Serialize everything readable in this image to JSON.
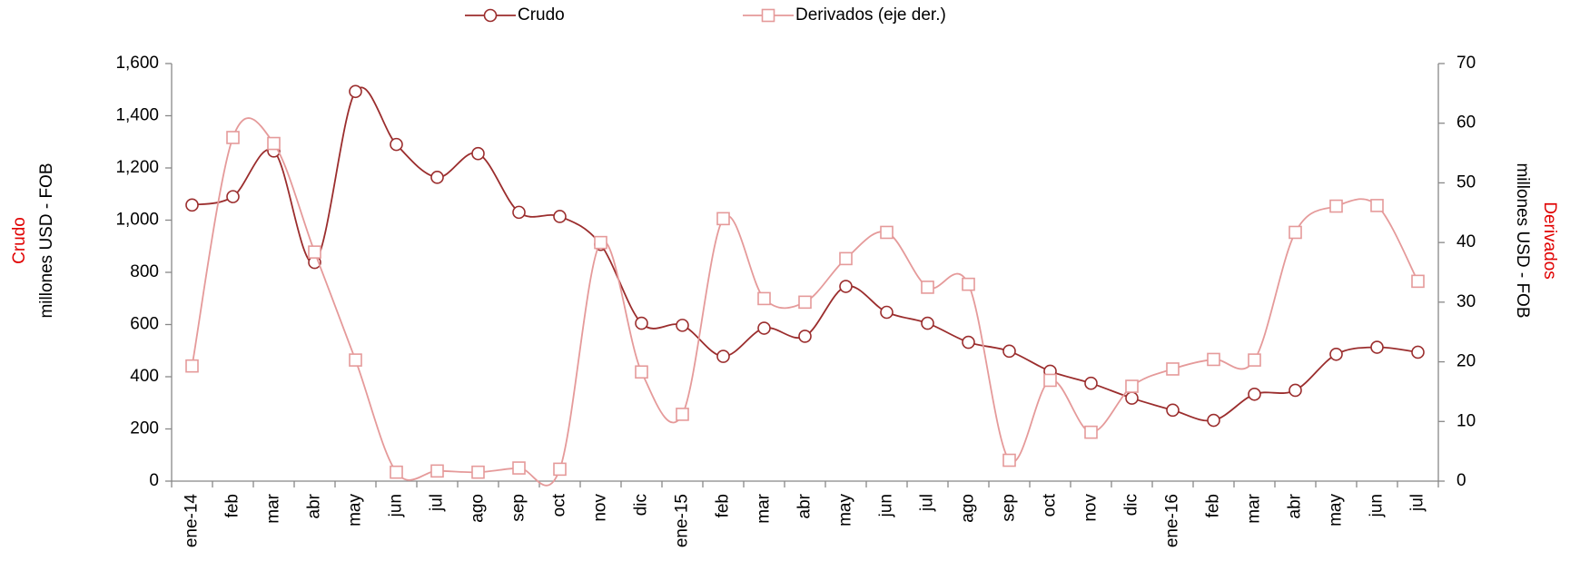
{
  "chart_data": {
    "type": "line",
    "categories": [
      "ene-14",
      "feb",
      "mar",
      "abr",
      "may",
      "jun",
      "jul",
      "ago",
      "sep",
      "oct",
      "nov",
      "dic",
      "ene-15",
      "feb",
      "mar",
      "abr",
      "may",
      "jun",
      "jul",
      "ago",
      "sep",
      "oct",
      "nov",
      "dic",
      "ene-16",
      "feb",
      "mar",
      "abr",
      "may",
      "jun",
      "jul"
    ],
    "series": [
      {
        "name": "Crudo",
        "color": "#9b2d2d",
        "values": [
          1058,
          1090,
          1265,
          838,
          1493,
          1290,
          1164,
          1255,
          1030,
          1014,
          907,
          605,
          597,
          478,
          586,
          555,
          746,
          647,
          605,
          532,
          498,
          421,
          375,
          318,
          272,
          233,
          333,
          348,
          486,
          513,
          494
        ]
      },
      {
        "name": "Derivados (eje der.)",
        "color": "#e59a9a",
        "axis": "y2",
        "values": [
          19.3,
          57.6,
          56.6,
          38.4,
          20.3,
          1.5,
          1.7,
          1.5,
          2.2,
          2.0,
          40.0,
          18.3,
          11.2,
          44.0,
          30.6,
          30.0,
          37.3,
          41.7,
          32.5,
          33.0,
          3.5,
          16.9,
          8.2,
          15.9,
          18.8,
          20.4,
          20.3,
          41.7,
          46.1,
          46.2,
          33.5
        ]
      }
    ],
    "ylim": [
      0,
      1600
    ],
    "yticks": [
      0,
      200,
      400,
      600,
      800,
      {
        "value": 1000,
        "label": "1,000"
      },
      {
        "value": 1200,
        "label": "1,200"
      },
      {
        "value": 1400,
        "label": "1,400"
      },
      {
        "value": 1600,
        "label": "1,600"
      }
    ],
    "y2lim": [
      0,
      70
    ],
    "y2ticks": [
      0,
      10,
      20,
      30,
      40,
      50,
      60,
      70
    ],
    "ylabel": [
      "Crudo",
      "millones USD - FOB"
    ],
    "y2label": [
      "Derivados",
      "millones USD - FOB"
    ],
    "label_highlight_color": "#e00000",
    "grid": false,
    "legend": "top"
  }
}
